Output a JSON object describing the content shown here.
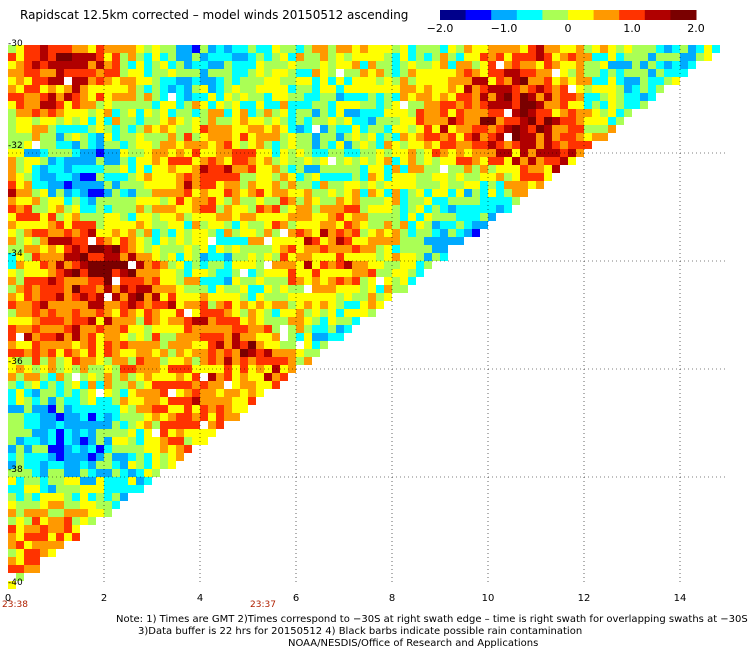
{
  "title": "Rapidscat 12.5km corrected – model winds 20150512 ascending",
  "colorbar": {
    "labels": [
      "−2.0",
      "−1.0",
      "0",
      "1.0",
      "2.0"
    ],
    "min": -2.0,
    "max": 2.0,
    "colors": [
      "#00008b",
      "#0000ff",
      "#00aaff",
      "#00ffff",
      "#aaff55",
      "#ffff00",
      "#ff9900",
      "#ff3300",
      "#b00000",
      "#7a0000"
    ]
  },
  "axes": {
    "y_ticks": [
      "-30",
      "-32",
      "-34",
      "-36",
      "-38",
      "-40"
    ],
    "x_ticks": [
      "0",
      "2",
      "4",
      "6",
      "8",
      "10",
      "12",
      "14"
    ],
    "x_range": [
      0,
      15
    ],
    "y_range": [
      -30,
      -40
    ],
    "grid": true
  },
  "times": [
    "23:38",
    "23:37"
  ],
  "notes": {
    "line1": "Note: 1) Times are GMT 2)Times correspond to −30S at right swath edge – time is right swath for overlapping swaths at −30S",
    "line2": "3)Data buffer is 22 hrs for 20150512 4) Black barbs indicate possible rain contamination",
    "line3": "NOAA/NESDIS/Office of Research and Applications"
  }
}
